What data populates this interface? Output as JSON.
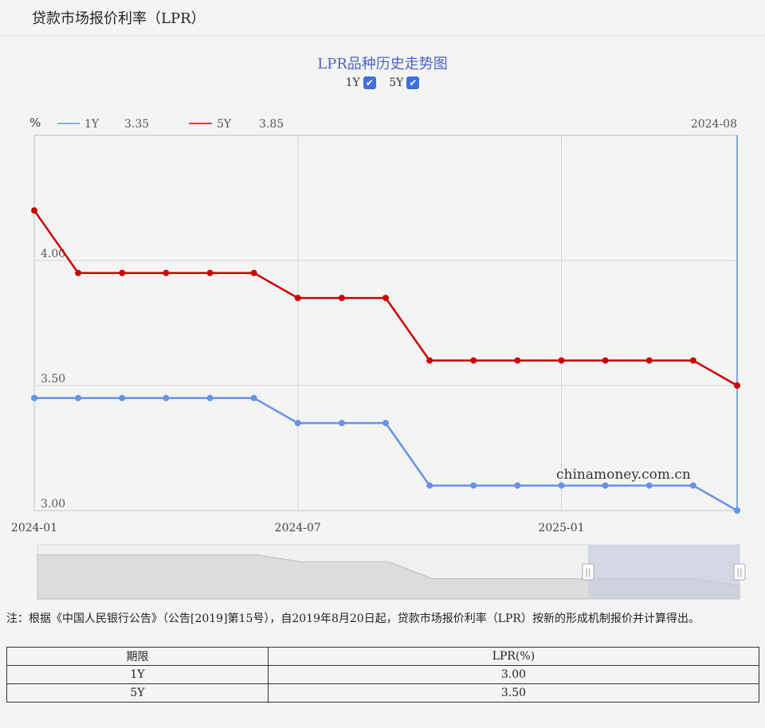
{
  "header": {
    "title": "贷款市场报价利率（LPR）"
  },
  "chart_title": "LPR品种历史走势图",
  "toggles": [
    {
      "label": "1Y",
      "checked": true
    },
    {
      "label": "5Y",
      "checked": true
    }
  ],
  "legend": {
    "unit": "%",
    "items": [
      {
        "name": "1Y",
        "value": "3.35",
        "color": "#6593e6"
      },
      {
        "name": "5Y",
        "value": "3.85",
        "color": "#cc0000"
      }
    ],
    "cursor_label": "2024-08"
  },
  "watermark": "chinamoney.com.cn",
  "chart_data": {
    "type": "line",
    "x": [
      "2024-01",
      "2024-02",
      "2024-03",
      "2024-04",
      "2024-05",
      "2024-06",
      "2024-07",
      "2024-08",
      "2024-09",
      "2024-10",
      "2024-11",
      "2024-12",
      "2025-01",
      "2025-02",
      "2025-03",
      "2025-04",
      "2025-05"
    ],
    "series": [
      {
        "name": "1Y",
        "color": "#6593e6",
        "values": [
          3.45,
          3.45,
          3.45,
          3.45,
          3.45,
          3.45,
          3.35,
          3.35,
          3.35,
          3.1,
          3.1,
          3.1,
          3.1,
          3.1,
          3.1,
          3.1,
          3.0
        ]
      },
      {
        "name": "5Y",
        "color": "#cc0000",
        "values": [
          4.2,
          3.95,
          3.95,
          3.95,
          3.95,
          3.95,
          3.85,
          3.85,
          3.85,
          3.6,
          3.6,
          3.6,
          3.6,
          3.6,
          3.6,
          3.6,
          3.5
        ]
      }
    ],
    "x_tick_labels": [
      "2024-01",
      "2024-07",
      "2025-01"
    ],
    "y_tick_labels": [
      "3.00",
      "3.50",
      "4.00"
    ],
    "ylim": [
      3.0,
      4.5
    ],
    "grid": true,
    "legend_position": "top-left"
  },
  "note": "注：根据《中国人民银行公告》（公告[2019]第15号），自2019年8月20日起，贷款市场报价利率（LPR）按新的形成机制报价并计算得出。",
  "table": {
    "headers": [
      "期限",
      "LPR(%)"
    ],
    "rows": [
      [
        "1Y",
        "3.00"
      ],
      [
        "5Y",
        "3.50"
      ]
    ]
  }
}
